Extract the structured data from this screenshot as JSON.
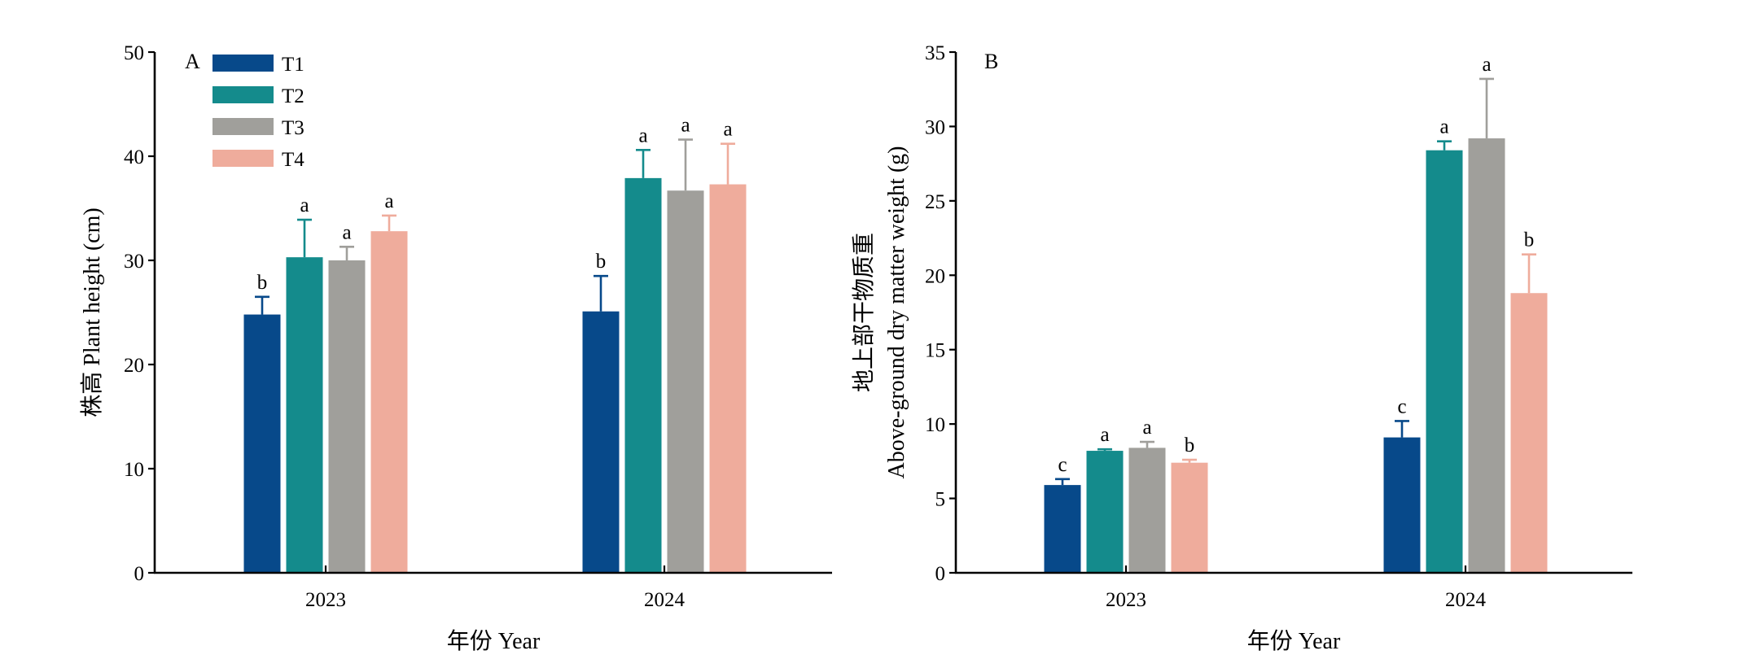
{
  "colors": {
    "T1": "#07498a",
    "T2": "#148b8c",
    "T3": "#a09f9b",
    "T4": "#efac9c",
    "axis": "#000000"
  },
  "legend": {
    "entries": [
      "T1",
      "T2",
      "T3",
      "T4"
    ]
  },
  "chart_data": [
    {
      "type": "bar",
      "panel_label": "A",
      "title": "",
      "xlabel": "年份 Year",
      "ylabel": "株高 Plant height (cm)",
      "ylim": [
        0,
        50
      ],
      "yticks": [
        0,
        10,
        20,
        30,
        40,
        50
      ],
      "categories": [
        "2023",
        "2024"
      ],
      "grid": false,
      "legend_position": "top-left",
      "series": [
        {
          "name": "T1",
          "values": [
            24.8,
            25.1
          ],
          "errors": [
            1.7,
            3.4
          ],
          "letters": [
            "b",
            "b"
          ]
        },
        {
          "name": "T2",
          "values": [
            30.3,
            37.9
          ],
          "errors": [
            3.6,
            2.7
          ],
          "letters": [
            "a",
            "a"
          ]
        },
        {
          "name": "T3",
          "values": [
            30.0,
            36.7
          ],
          "errors": [
            1.3,
            4.9
          ],
          "letters": [
            "a",
            "a"
          ]
        },
        {
          "name": "T4",
          "values": [
            32.8,
            37.3
          ],
          "errors": [
            1.5,
            3.9
          ],
          "letters": [
            "a",
            "a"
          ]
        }
      ]
    },
    {
      "type": "bar",
      "panel_label": "B",
      "title": "",
      "xlabel": "年份 Year",
      "ylabel_line1": "地上部干物质重",
      "ylabel_line2": "Above-ground dry matter weight (g)",
      "ylim": [
        0,
        35
      ],
      "yticks": [
        0,
        5,
        10,
        15,
        20,
        25,
        30,
        35
      ],
      "categories": [
        "2023",
        "2024"
      ],
      "grid": false,
      "series": [
        {
          "name": "T1",
          "values": [
            5.9,
            9.1
          ],
          "errors": [
            0.4,
            1.1
          ],
          "letters": [
            "c",
            "c"
          ]
        },
        {
          "name": "T2",
          "values": [
            8.2,
            28.4
          ],
          "errors": [
            0.1,
            0.6
          ],
          "letters": [
            "a",
            "a"
          ]
        },
        {
          "name": "T3",
          "values": [
            8.4,
            29.2
          ],
          "errors": [
            0.4,
            4.0
          ],
          "letters": [
            "a",
            "a"
          ]
        },
        {
          "name": "T4",
          "values": [
            7.4,
            18.8
          ],
          "errors": [
            0.2,
            2.6
          ],
          "letters": [
            "b",
            "b"
          ]
        }
      ]
    }
  ]
}
